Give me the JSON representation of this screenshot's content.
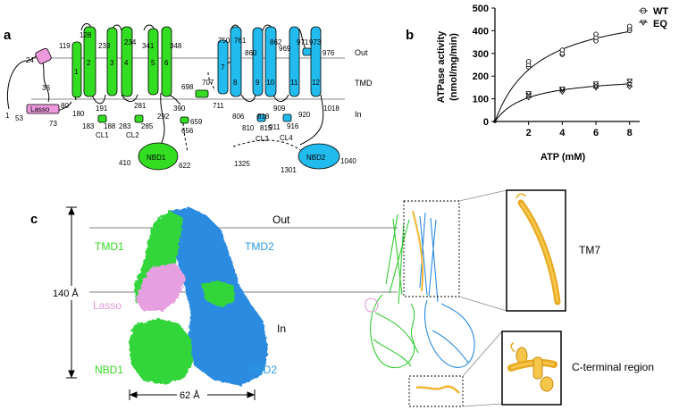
{
  "panels": {
    "a": "a",
    "b": "b",
    "c": "c"
  },
  "topology": {
    "region_labels": {
      "out": "Out",
      "tmd": "TMD",
      "in": "In"
    },
    "helices": [
      "1",
      "2",
      "3",
      "4",
      "5",
      "6",
      "7",
      "8",
      "9",
      "10",
      "11",
      "12"
    ],
    "domains": {
      "lasso": "Lasso",
      "nbd1": "NBD1",
      "nbd2": "NBD2"
    },
    "loops": {
      "cl1": "CL1",
      "cl2": "CL2",
      "cl3": "CL3",
      "cl4": "CL4"
    },
    "residues": [
      "24",
      "36",
      "1",
      "53",
      "73",
      "80",
      "119",
      "128",
      "191",
      "180",
      "183",
      "188",
      "233",
      "234",
      "281",
      "283",
      "285",
      "341",
      "348",
      "292",
      "390",
      "410",
      "622",
      "659",
      "656",
      "698",
      "707",
      "750",
      "761",
      "711",
      "806",
      "810",
      "815",
      "818",
      "860",
      "862",
      "909",
      "911",
      "916",
      "920",
      "969",
      "971",
      "973",
      "976",
      "1018",
      "1040",
      "1325",
      "1301"
    ],
    "colors": {
      "tmd1": "#33dd22",
      "tmd2": "#22bbee",
      "lasso": "#ee99dd"
    }
  },
  "chart_data": {
    "type": "scatter",
    "panel": "b",
    "xlabel": "ATP (mM)",
    "ylabel_line1": "ATPase activity",
    "ylabel_line2": "(nmol/mg/min)",
    "x_ticks": [
      "2",
      "4",
      "6",
      "8"
    ],
    "y_ticks": [
      "0",
      "100",
      "200",
      "300",
      "400",
      "500"
    ],
    "xlim": [
      0,
      8.6
    ],
    "ylim": [
      0,
      500
    ],
    "origin_label": "0",
    "series": [
      {
        "name": "WT",
        "points": [
          [
            2,
            240
          ],
          [
            2,
            250
          ],
          [
            2,
            265
          ],
          [
            4,
            295
          ],
          [
            4,
            300
          ],
          [
            4,
            315
          ],
          [
            6,
            355
          ],
          [
            6,
            370
          ],
          [
            6,
            385
          ],
          [
            8,
            400
          ],
          [
            8,
            410
          ],
          [
            8,
            420
          ]
        ],
        "fit": {
          "vmax": 525,
          "km": 2.6
        }
      },
      {
        "name": "EQ",
        "points": [
          [
            2,
            105
          ],
          [
            2,
            115
          ],
          [
            2,
            125
          ],
          [
            4,
            130
          ],
          [
            4,
            140
          ],
          [
            4,
            145
          ],
          [
            6,
            148
          ],
          [
            6,
            155
          ],
          [
            6,
            168
          ],
          [
            8,
            152
          ],
          [
            8,
            165
          ],
          [
            8,
            180
          ]
        ],
        "fit": {
          "vmax": 205,
          "km": 1.9
        }
      }
    ]
  },
  "structure": {
    "height_label": "140 Å",
    "width_label": "62 Å",
    "out_label": "Out",
    "in_label": "In",
    "tmd1": "TMD1",
    "tmd2": "TMD2",
    "lasso": "Lasso",
    "nbd1": "NBD1",
    "nbd2": "NBD2",
    "tm7": "TM7",
    "cterm": "C-terminal region"
  }
}
